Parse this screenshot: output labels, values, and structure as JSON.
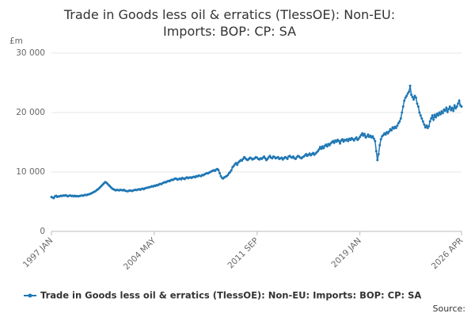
{
  "chart_data": {
    "type": "line",
    "title": "Trade in Goods less oil & erratics (TlessOE): Non-EU: Imports: BOP: CP: SA",
    "y_unit": "£m",
    "source": "Source:",
    "categories": [
      "1997 JAN",
      null,
      null,
      null,
      null,
      null,
      null,
      null,
      null,
      null,
      null,
      null,
      null,
      null,
      null,
      null,
      null,
      null,
      null,
      null,
      null,
      null,
      null,
      null,
      null,
      null,
      null,
      null,
      null,
      null,
      null,
      null,
      null,
      null,
      null,
      null,
      null,
      null,
      null,
      null,
      null,
      null,
      null,
      null,
      null,
      null,
      null,
      null,
      null,
      null,
      null,
      null,
      null,
      null,
      null,
      null,
      null,
      null,
      null,
      null,
      null,
      null,
      null,
      null,
      null,
      null,
      null,
      null,
      null,
      null,
      null,
      null,
      null,
      null,
      null,
      null,
      null,
      null,
      null,
      null,
      null,
      null,
      null,
      null,
      null,
      null,
      null,
      null,
      "2004 MAY",
      null,
      null,
      null,
      null,
      null,
      null,
      null,
      null,
      null,
      null,
      null,
      null,
      null,
      null,
      null,
      null,
      null,
      null,
      null,
      null,
      null,
      null,
      null,
      null,
      null,
      null,
      null,
      null,
      null,
      null,
      null,
      null,
      null,
      null,
      null,
      null,
      null,
      null,
      null,
      null,
      null,
      null,
      null,
      null,
      null,
      null,
      null,
      null,
      null,
      null,
      null,
      null,
      null,
      null,
      null,
      null,
      null,
      null,
      null,
      null,
      null,
      null,
      null,
      null,
      null,
      null,
      null,
      null,
      null,
      null,
      null,
      null,
      null,
      null,
      null,
      null,
      null,
      null,
      null,
      null,
      null,
      null,
      null,
      null,
      null,
      null,
      null,
      "2011 SEP",
      null,
      null,
      null,
      null,
      null,
      null,
      null,
      null,
      null,
      null,
      null,
      null,
      null,
      null,
      null,
      null,
      null,
      null,
      null,
      null,
      null,
      null,
      null,
      null,
      null,
      null,
      null,
      null,
      null,
      null,
      null,
      null,
      null,
      null,
      null,
      null,
      null,
      null,
      null,
      null,
      null,
      null,
      null,
      null,
      null,
      null,
      null,
      null,
      null,
      null,
      null,
      null,
      null,
      null,
      null,
      null,
      null,
      null,
      null,
      null,
      null,
      null,
      null,
      null,
      null,
      null,
      null,
      null,
      null,
      null,
      null,
      null,
      null,
      null,
      null,
      null,
      null,
      null,
      null,
      null,
      null,
      null,
      null,
      null,
      null,
      null,
      null,
      "2019 JAN",
      null,
      null,
      null,
      null,
      null,
      null,
      null,
      null,
      null,
      null,
      null,
      null,
      null,
      null,
      null,
      null,
      null,
      null,
      null,
      null,
      null,
      null,
      null,
      null,
      null,
      null,
      null,
      null,
      null,
      null,
      null,
      null,
      null,
      null,
      null,
      null,
      null,
      null,
      null,
      null,
      null,
      null,
      null,
      null,
      null,
      null,
      null,
      null,
      null,
      null,
      null,
      null,
      null,
      null,
      null,
      null,
      null,
      null,
      null,
      null,
      null,
      null,
      null,
      null,
      null,
      null,
      null,
      null,
      null,
      null,
      null,
      null,
      null,
      null,
      null,
      null,
      null,
      null,
      null,
      null,
      null,
      null,
      null,
      null,
      null,
      null,
      "2026 APR"
    ],
    "series": [
      {
        "name": "Trade in Goods less oil & erratics (TlessOE): Non-EU: Imports: BOP: CP: SA",
        "color": "#1f77b4",
        "values": [
          5800,
          5700,
          5600,
          5900,
          6000,
          5800,
          5900,
          5900,
          6000,
          5950,
          6050,
          6000,
          6100,
          6000,
          5900,
          6000,
          6050,
          5950,
          6000,
          5900,
          6000,
          5900,
          5950,
          5900,
          5950,
          6000,
          6050,
          6000,
          6100,
          6150,
          6100,
          6200,
          6250,
          6300,
          6400,
          6500,
          6600,
          6700,
          6800,
          7000,
          7100,
          7300,
          7500,
          7700,
          7900,
          8100,
          8300,
          8200,
          8000,
          7800,
          7600,
          7400,
          7200,
          7100,
          7000,
          6900,
          7000,
          6950,
          6900,
          7000,
          6950,
          6900,
          7000,
          6850,
          6800,
          6750,
          6800,
          6900,
          6850,
          6800,
          6900,
          6950,
          7000,
          6950,
          7050,
          7100,
          7000,
          7150,
          7200,
          7100,
          7250,
          7300,
          7350,
          7400,
          7450,
          7500,
          7600,
          7550,
          7700,
          7650,
          7800,
          7750,
          7900,
          8000,
          7950,
          8100,
          8200,
          8300,
          8250,
          8400,
          8500,
          8450,
          8600,
          8700,
          8650,
          8800,
          8900,
          8850,
          8700,
          8800,
          8900,
          8750,
          9000,
          8900,
          8800,
          9000,
          9100,
          8950,
          9050,
          9100,
          9000,
          9150,
          9200,
          9100,
          9300,
          9250,
          9400,
          9350,
          9300,
          9500,
          9450,
          9600,
          9700,
          9800,
          9750,
          9900,
          10000,
          10100,
          10200,
          10300,
          10200,
          10400,
          10500,
          10300,
          9800,
          9300,
          9000,
          8900,
          9100,
          9200,
          9300,
          9500,
          9800,
          10000,
          10300,
          10800,
          11000,
          11300,
          11500,
          11200,
          11600,
          11800,
          12000,
          11900,
          12200,
          12500,
          12300,
          12100,
          12000,
          12200,
          12400,
          12300,
          12100,
          12200,
          12300,
          12500,
          12400,
          12200,
          12100,
          12300,
          12200,
          12400,
          12600,
          12300,
          12000,
          12200,
          12500,
          12700,
          12400,
          12300,
          12600,
          12500,
          12300,
          12400,
          12500,
          12200,
          12300,
          12400,
          12100,
          12300,
          12500,
          12400,
          12200,
          12600,
          12700,
          12500,
          12400,
          12600,
          12300,
          12200,
          12500,
          12700,
          12600,
          12400,
          12300,
          12500,
          12600,
          12800,
          13000,
          12700,
          12900,
          13100,
          12800,
          13000,
          13200,
          12900,
          13100,
          13300,
          13500,
          13800,
          14200,
          13900,
          14300,
          14000,
          14400,
          14600,
          14300,
          14700,
          14500,
          14800,
          15000,
          15200,
          14900,
          15300,
          15100,
          15400,
          15200,
          14800,
          15300,
          15500,
          15100,
          15400,
          15300,
          15500,
          15200,
          15600,
          15400,
          15700,
          15500,
          15300,
          15600,
          15800,
          15400,
          15600,
          15900,
          16200,
          16500,
          16100,
          16400,
          15800,
          16000,
          16300,
          15900,
          16100,
          15800,
          16000,
          15600,
          15200,
          13500,
          12000,
          13000,
          14500,
          15500,
          16000,
          16200,
          16500,
          16300,
          16700,
          16500,
          16800,
          17200,
          17000,
          17500,
          17300,
          17600,
          17400,
          17800,
          18200,
          18500,
          19000,
          20000,
          21000,
          22000,
          22500,
          22800,
          23200,
          23500,
          24500,
          23000,
          22600,
          22200,
          22800,
          22500,
          21500,
          21000,
          20000,
          19500,
          19000,
          18500,
          18000,
          17500,
          17800,
          17400,
          17700,
          18500,
          19000,
          19500,
          18800,
          19600,
          19200,
          19800,
          19500,
          20000,
          19700,
          20200,
          19900,
          20500,
          20300,
          20800,
          20100,
          20600,
          21000,
          20400,
          20800,
          20300,
          21200,
          20700,
          21000,
          21500,
          22000,
          21200,
          21000
        ]
      }
    ],
    "ylim": [
      0,
      30000
    ],
    "yticks": [
      0,
      {
        "value": 10000,
        "label": "10 000"
      },
      {
        "value": 20000,
        "label": "20 000"
      },
      {
        "value": 30000,
        "label": "30 000"
      }
    ],
    "grid": true
  }
}
